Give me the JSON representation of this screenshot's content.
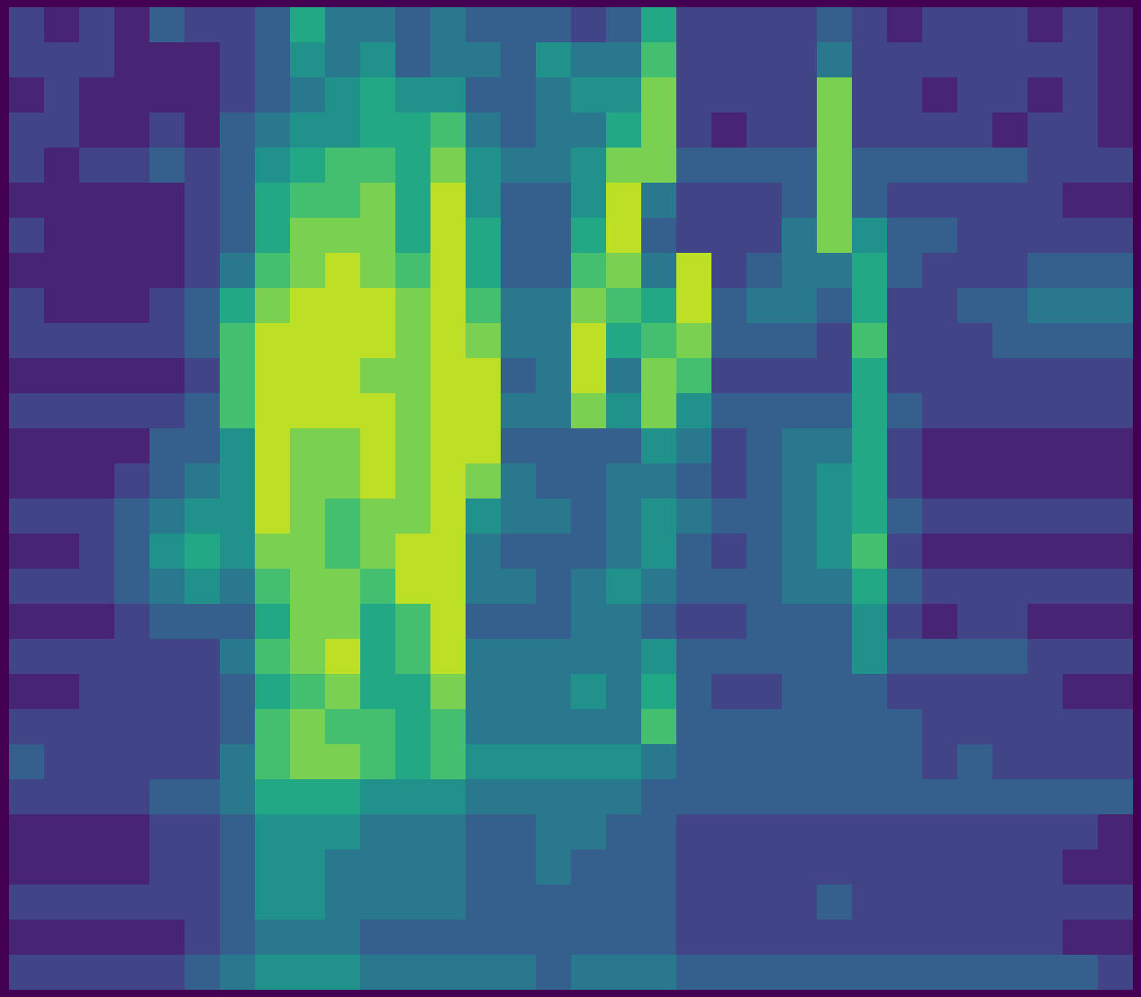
{
  "chart_data": {
    "type": "heatmap",
    "color": "viridis",
    "tick_labels": false,
    "color_range": [
      0,
      10
    ],
    "cells": [
      [
        2,
        1,
        2,
        1,
        3,
        2,
        2,
        3,
        6,
        4,
        4,
        3,
        4,
        3,
        3,
        3,
        2,
        3,
        6,
        2,
        2,
        2,
        2,
        3,
        2,
        1,
        2,
        2,
        2,
        1,
        2,
        1
      ],
      [
        2,
        2,
        2,
        1,
        1,
        1,
        2,
        3,
        5,
        4,
        5,
        3,
        4,
        4,
        3,
        5,
        4,
        4,
        7,
        2,
        2,
        2,
        2,
        4,
        2,
        2,
        2,
        2,
        2,
        2,
        2,
        1
      ],
      [
        1,
        2,
        1,
        1,
        1,
        1,
        2,
        3,
        4,
        5,
        6,
        5,
        5,
        3,
        3,
        4,
        5,
        5,
        8,
        2,
        2,
        2,
        2,
        8,
        2,
        2,
        1,
        2,
        2,
        1,
        2,
        1
      ],
      [
        2,
        2,
        1,
        1,
        2,
        1,
        3,
        4,
        5,
        5,
        6,
        6,
        7,
        4,
        3,
        4,
        4,
        6,
        8,
        2,
        1,
        2,
        2,
        8,
        2,
        2,
        2,
        2,
        1,
        2,
        2,
        1
      ],
      [
        2,
        1,
        2,
        2,
        3,
        2,
        3,
        5,
        6,
        7,
        7,
        6,
        8,
        5,
        4,
        4,
        5,
        8,
        8,
        3,
        3,
        3,
        3,
        8,
        3,
        3,
        3,
        3,
        3,
        2,
        2,
        2
      ],
      [
        1,
        1,
        1,
        1,
        1,
        2,
        3,
        6,
        7,
        7,
        8,
        6,
        9,
        5,
        3,
        3,
        5,
        9,
        4,
        2,
        2,
        2,
        3,
        8,
        3,
        2,
        2,
        2,
        2,
        2,
        1,
        1
      ],
      [
        2,
        1,
        1,
        1,
        1,
        2,
        3,
        6,
        8,
        8,
        8,
        6,
        9,
        6,
        3,
        3,
        6,
        9,
        3,
        2,
        2,
        2,
        4,
        8,
        5,
        3,
        3,
        2,
        2,
        2,
        2,
        2
      ],
      [
        1,
        1,
        1,
        1,
        1,
        2,
        4,
        7,
        8,
        9,
        8,
        7,
        9,
        6,
        3,
        3,
        7,
        8,
        4,
        9,
        2,
        3,
        4,
        4,
        6,
        3,
        2,
        2,
        2,
        3,
        3,
        3
      ],
      [
        2,
        1,
        1,
        1,
        2,
        3,
        6,
        8,
        9,
        9,
        9,
        8,
        9,
        7,
        4,
        4,
        8,
        7,
        6,
        9,
        3,
        4,
        4,
        3,
        6,
        2,
        2,
        3,
        3,
        4,
        4,
        4
      ],
      [
        2,
        2,
        2,
        2,
        2,
        3,
        7,
        9,
        9,
        9,
        9,
        8,
        9,
        8,
        4,
        4,
        9,
        6,
        7,
        8,
        3,
        3,
        3,
        2,
        7,
        2,
        2,
        2,
        3,
        3,
        3,
        3
      ],
      [
        1,
        1,
        1,
        1,
        1,
        2,
        7,
        9,
        9,
        9,
        8,
        8,
        9,
        9,
        3,
        4,
        9,
        4,
        8,
        7,
        2,
        2,
        2,
        2,
        6,
        2,
        2,
        2,
        2,
        2,
        2,
        2
      ],
      [
        2,
        2,
        2,
        2,
        2,
        3,
        7,
        9,
        9,
        9,
        9,
        8,
        9,
        9,
        4,
        4,
        8,
        5,
        8,
        5,
        3,
        3,
        3,
        3,
        6,
        3,
        2,
        2,
        2,
        2,
        2,
        2
      ],
      [
        1,
        1,
        1,
        1,
        3,
        3,
        5,
        9,
        8,
        8,
        9,
        8,
        9,
        9,
        3,
        3,
        3,
        3,
        5,
        4,
        2,
        3,
        4,
        4,
        6,
        2,
        1,
        1,
        1,
        1,
        1,
        1
      ],
      [
        1,
        1,
        1,
        2,
        3,
        4,
        5,
        9,
        8,
        8,
        9,
        8,
        9,
        8,
        4,
        3,
        3,
        4,
        4,
        3,
        2,
        3,
        4,
        5,
        6,
        2,
        1,
        1,
        1,
        1,
        1,
        1
      ],
      [
        2,
        2,
        2,
        3,
        4,
        5,
        5,
        9,
        8,
        7,
        8,
        8,
        9,
        5,
        4,
        4,
        3,
        4,
        5,
        4,
        3,
        3,
        4,
        5,
        6,
        3,
        2,
        2,
        2,
        2,
        2,
        2
      ],
      [
        1,
        1,
        2,
        3,
        5,
        6,
        5,
        8,
        8,
        7,
        8,
        9,
        9,
        4,
        3,
        3,
        3,
        4,
        5,
        3,
        2,
        3,
        4,
        5,
        7,
        2,
        1,
        1,
        1,
        1,
        1,
        1
      ],
      [
        2,
        2,
        2,
        3,
        4,
        5,
        4,
        7,
        8,
        8,
        7,
        9,
        9,
        4,
        4,
        3,
        4,
        5,
        4,
        3,
        3,
        3,
        4,
        4,
        6,
        3,
        2,
        2,
        2,
        2,
        2,
        2
      ],
      [
        1,
        1,
        1,
        2,
        3,
        3,
        3,
        6,
        8,
        8,
        6,
        7,
        9,
        3,
        3,
        3,
        4,
        4,
        3,
        2,
        2,
        3,
        3,
        3,
        5,
        2,
        1,
        2,
        2,
        1,
        1,
        1
      ],
      [
        2,
        2,
        2,
        2,
        2,
        2,
        4,
        7,
        8,
        9,
        6,
        7,
        9,
        4,
        4,
        4,
        4,
        4,
        5,
        3,
        3,
        3,
        3,
        3,
        5,
        3,
        3,
        3,
        3,
        2,
        2,
        2
      ],
      [
        1,
        1,
        2,
        2,
        2,
        2,
        3,
        6,
        7,
        8,
        6,
        6,
        8,
        4,
        4,
        4,
        5,
        4,
        6,
        3,
        2,
        2,
        3,
        3,
        3,
        2,
        2,
        2,
        2,
        2,
        1,
        1
      ],
      [
        2,
        2,
        2,
        2,
        2,
        2,
        3,
        7,
        8,
        7,
        7,
        6,
        7,
        4,
        4,
        4,
        4,
        4,
        7,
        3,
        3,
        3,
        3,
        3,
        3,
        3,
        2,
        2,
        2,
        2,
        2,
        2
      ],
      [
        3,
        2,
        2,
        2,
        2,
        2,
        4,
        7,
        8,
        8,
        7,
        6,
        7,
        5,
        5,
        5,
        5,
        5,
        4,
        3,
        3,
        3,
        3,
        3,
        3,
        3,
        2,
        3,
        2,
        2,
        2,
        2
      ],
      [
        2,
        2,
        2,
        2,
        3,
        3,
        4,
        6,
        6,
        6,
        5,
        5,
        5,
        4,
        4,
        4,
        4,
        4,
        3,
        3,
        3,
        3,
        3,
        3,
        3,
        3,
        3,
        3,
        3,
        3,
        3,
        3
      ],
      [
        1,
        1,
        1,
        1,
        2,
        2,
        3,
        5,
        5,
        5,
        4,
        4,
        4,
        3,
        3,
        4,
        4,
        3,
        3,
        2,
        2,
        2,
        2,
        2,
        2,
        2,
        2,
        2,
        2,
        2,
        2,
        1
      ],
      [
        1,
        1,
        1,
        1,
        2,
        2,
        3,
        5,
        5,
        4,
        4,
        4,
        4,
        3,
        3,
        4,
        3,
        3,
        3,
        2,
        2,
        2,
        2,
        2,
        2,
        2,
        2,
        2,
        2,
        2,
        1,
        1
      ],
      [
        2,
        2,
        2,
        2,
        2,
        2,
        3,
        5,
        5,
        4,
        4,
        4,
        4,
        3,
        3,
        3,
        3,
        3,
        3,
        2,
        2,
        2,
        2,
        3,
        2,
        2,
        2,
        2,
        2,
        2,
        2,
        2
      ],
      [
        1,
        1,
        1,
        1,
        1,
        2,
        3,
        4,
        4,
        4,
        3,
        3,
        3,
        3,
        3,
        3,
        3,
        3,
        3,
        2,
        2,
        2,
        2,
        2,
        2,
        2,
        2,
        2,
        2,
        2,
        1,
        1
      ],
      [
        2,
        2,
        2,
        2,
        2,
        3,
        4,
        5,
        5,
        5,
        4,
        4,
        4,
        4,
        4,
        3,
        4,
        4,
        4,
        3,
        3,
        3,
        3,
        3,
        3,
        3,
        3,
        3,
        3,
        3,
        3,
        2
      ]
    ]
  }
}
